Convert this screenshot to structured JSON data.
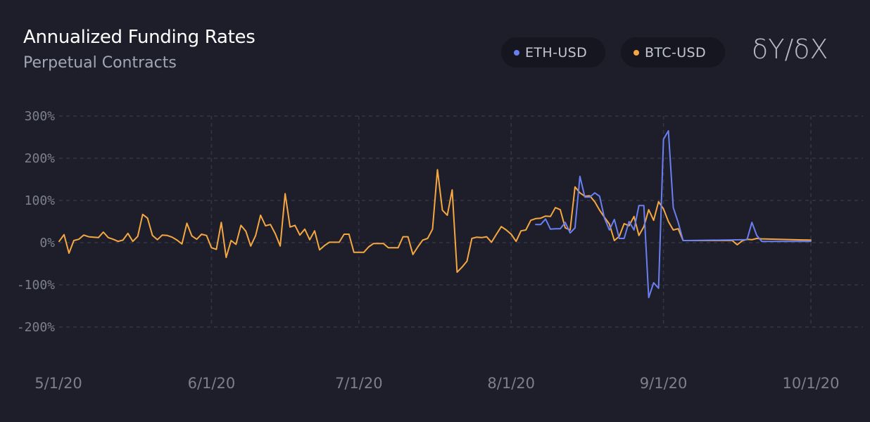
{
  "header": {
    "title": "Annualized Funding Rates",
    "subtitle": "Perpetual Contracts",
    "logo_text": "δY/δX"
  },
  "legend": [
    {
      "label": "ETH-USD",
      "color": "#6a7ff2"
    },
    {
      "label": "BTC-USD",
      "color": "#f5a742"
    }
  ],
  "chart_data": {
    "type": "line",
    "title": "Annualized Funding Rates",
    "subtitle": "Perpetual Contracts",
    "x_axis": {
      "type": "date",
      "range": [
        "2020-05-01",
        "2020-10-01"
      ],
      "ticks": [
        {
          "date": "2020-05-01",
          "label": "5/1/20"
        },
        {
          "date": "2020-06-01",
          "label": "6/1/20"
        },
        {
          "date": "2020-07-01",
          "label": "7/1/20"
        },
        {
          "date": "2020-08-01",
          "label": "8/1/20"
        },
        {
          "date": "2020-09-01",
          "label": "9/1/20"
        },
        {
          "date": "2020-10-01",
          "label": "10/1/20"
        }
      ]
    },
    "y_axis": {
      "unit": "%",
      "range": [
        -200,
        300
      ],
      "ticks": [
        {
          "value": 300,
          "label": "300%"
        },
        {
          "value": 200,
          "label": "200%"
        },
        {
          "value": 100,
          "label": "100%"
        },
        {
          "value": 0,
          "label": "0%"
        },
        {
          "value": -100,
          "label": "-100%"
        },
        {
          "value": -200,
          "label": "-200%"
        }
      ]
    },
    "grid": true,
    "legend_position": "top-right",
    "series": [
      {
        "name": "BTC-USD",
        "color": "#f5a742",
        "points": [
          [
            "2020-05-01",
            3
          ],
          [
            "2020-05-02",
            19
          ],
          [
            "2020-05-03",
            -25
          ],
          [
            "2020-05-04",
            5
          ],
          [
            "2020-05-05",
            8
          ],
          [
            "2020-05-06",
            18
          ],
          [
            "2020-05-07",
            14
          ],
          [
            "2020-05-08",
            13
          ],
          [
            "2020-05-09",
            12
          ],
          [
            "2020-05-10",
            25
          ],
          [
            "2020-05-11",
            12
          ],
          [
            "2020-05-12",
            8
          ],
          [
            "2020-05-13",
            3
          ],
          [
            "2020-05-14",
            6
          ],
          [
            "2020-05-15",
            22
          ],
          [
            "2020-05-16",
            3
          ],
          [
            "2020-05-17",
            15
          ],
          [
            "2020-05-18",
            67
          ],
          [
            "2020-05-19",
            58
          ],
          [
            "2020-05-20",
            17
          ],
          [
            "2020-05-21",
            7
          ],
          [
            "2020-05-22",
            18
          ],
          [
            "2020-05-23",
            17
          ],
          [
            "2020-05-24",
            13
          ],
          [
            "2020-05-25",
            6
          ],
          [
            "2020-05-26",
            -3
          ],
          [
            "2020-05-27",
            46
          ],
          [
            "2020-05-28",
            16
          ],
          [
            "2020-05-29",
            8
          ],
          [
            "2020-05-30",
            20
          ],
          [
            "2020-05-31",
            17
          ],
          [
            "2020-06-01",
            -12
          ],
          [
            "2020-06-02",
            -16
          ],
          [
            "2020-06-03",
            48
          ],
          [
            "2020-06-04",
            -35
          ],
          [
            "2020-06-05",
            5
          ],
          [
            "2020-06-06",
            -4
          ],
          [
            "2020-06-07",
            41
          ],
          [
            "2020-06-08",
            27
          ],
          [
            "2020-06-09",
            -8
          ],
          [
            "2020-06-10",
            17
          ],
          [
            "2020-06-11",
            65
          ],
          [
            "2020-06-12",
            40
          ],
          [
            "2020-06-13",
            43
          ],
          [
            "2020-06-14",
            21
          ],
          [
            "2020-06-15",
            -8
          ],
          [
            "2020-06-16",
            116
          ],
          [
            "2020-06-17",
            37
          ],
          [
            "2020-06-18",
            41
          ],
          [
            "2020-06-19",
            18
          ],
          [
            "2020-06-20",
            32
          ],
          [
            "2020-06-21",
            7
          ],
          [
            "2020-06-22",
            28
          ],
          [
            "2020-06-23",
            -17
          ],
          [
            "2020-06-24",
            -7
          ],
          [
            "2020-06-25",
            1
          ],
          [
            "2020-06-26",
            1
          ],
          [
            "2020-06-27",
            1
          ],
          [
            "2020-06-28",
            20
          ],
          [
            "2020-06-29",
            20
          ],
          [
            "2020-06-30",
            -23
          ],
          [
            "2020-07-01",
            -23
          ],
          [
            "2020-07-02",
            -23
          ],
          [
            "2020-07-03",
            -10
          ],
          [
            "2020-07-04",
            -2
          ],
          [
            "2020-07-05",
            -2
          ],
          [
            "2020-07-06",
            -2
          ],
          [
            "2020-07-07",
            -12
          ],
          [
            "2020-07-08",
            -12
          ],
          [
            "2020-07-09",
            -12
          ],
          [
            "2020-07-10",
            14
          ],
          [
            "2020-07-11",
            14
          ],
          [
            "2020-07-12",
            -28
          ],
          [
            "2020-07-13",
            -10
          ],
          [
            "2020-07-14",
            6
          ],
          [
            "2020-07-15",
            10
          ],
          [
            "2020-07-16",
            32
          ],
          [
            "2020-07-17",
            173
          ],
          [
            "2020-07-18",
            77
          ],
          [
            "2020-07-19",
            65
          ],
          [
            "2020-07-20",
            125
          ],
          [
            "2020-07-21",
            -70
          ],
          [
            "2020-07-22",
            -58
          ],
          [
            "2020-07-23",
            -44
          ],
          [
            "2020-07-24",
            10
          ],
          [
            "2020-07-25",
            13
          ],
          [
            "2020-07-26",
            12
          ],
          [
            "2020-07-27",
            14
          ],
          [
            "2020-07-28",
            1
          ],
          [
            "2020-07-29",
            20
          ],
          [
            "2020-07-30",
            38
          ],
          [
            "2020-07-31",
            30
          ],
          [
            "2020-08-01",
            20
          ],
          [
            "2020-08-02",
            3
          ],
          [
            "2020-08-03",
            28
          ],
          [
            "2020-08-04",
            30
          ],
          [
            "2020-08-05",
            53
          ],
          [
            "2020-08-06",
            57
          ],
          [
            "2020-08-07",
            58
          ],
          [
            "2020-08-08",
            63
          ],
          [
            "2020-08-09",
            62
          ],
          [
            "2020-08-10",
            83
          ],
          [
            "2020-08-11",
            78
          ],
          [
            "2020-08-12",
            35
          ],
          [
            "2020-08-13",
            30
          ],
          [
            "2020-08-14",
            132
          ],
          [
            "2020-08-15",
            118
          ],
          [
            "2020-08-16",
            110
          ],
          [
            "2020-08-17",
            111
          ],
          [
            "2020-08-18",
            97
          ],
          [
            "2020-08-19",
            77
          ],
          [
            "2020-08-20",
            60
          ],
          [
            "2020-08-21",
            44
          ],
          [
            "2020-08-22",
            5
          ],
          [
            "2020-08-23",
            15
          ],
          [
            "2020-08-24",
            45
          ],
          [
            "2020-08-25",
            40
          ],
          [
            "2020-08-26",
            62
          ],
          [
            "2020-08-27",
            17
          ],
          [
            "2020-08-28",
            38
          ],
          [
            "2020-08-29",
            78
          ],
          [
            "2020-08-30",
            53
          ],
          [
            "2020-08-31",
            97
          ],
          [
            "2020-09-01",
            80
          ],
          [
            "2020-09-02",
            50
          ],
          [
            "2020-09-03",
            30
          ],
          [
            "2020-09-04",
            33
          ],
          [
            "2020-09-05",
            5
          ],
          [
            "2020-09-06",
            5
          ],
          [
            "2020-09-15",
            5
          ],
          [
            "2020-09-16",
            -5
          ],
          [
            "2020-09-17",
            4
          ],
          [
            "2020-09-18",
            8
          ],
          [
            "2020-09-19",
            7
          ],
          [
            "2020-09-20",
            10
          ],
          [
            "2020-09-21",
            9
          ],
          [
            "2020-10-01",
            6
          ]
        ]
      },
      {
        "name": "ETH-USD",
        "color": "#6a7ff2",
        "points": [
          [
            "2020-08-06",
            43
          ],
          [
            "2020-08-07",
            43
          ],
          [
            "2020-08-08",
            56
          ],
          [
            "2020-08-09",
            32
          ],
          [
            "2020-08-10",
            33
          ],
          [
            "2020-08-11",
            33
          ],
          [
            "2020-08-12",
            48
          ],
          [
            "2020-08-13",
            23
          ],
          [
            "2020-08-14",
            35
          ],
          [
            "2020-08-15",
            157
          ],
          [
            "2020-08-16",
            108
          ],
          [
            "2020-08-17",
            108
          ],
          [
            "2020-08-18",
            118
          ],
          [
            "2020-08-19",
            110
          ],
          [
            "2020-08-20",
            58
          ],
          [
            "2020-08-21",
            30
          ],
          [
            "2020-08-22",
            55
          ],
          [
            "2020-08-23",
            10
          ],
          [
            "2020-08-24",
            10
          ],
          [
            "2020-08-25",
            50
          ],
          [
            "2020-08-26",
            30
          ],
          [
            "2020-08-27",
            88
          ],
          [
            "2020-08-28",
            88
          ],
          [
            "2020-08-29",
            -130
          ],
          [
            "2020-08-30",
            -95
          ],
          [
            "2020-08-31",
            -108
          ],
          [
            "2020-09-01",
            245
          ],
          [
            "2020-09-02",
            265
          ],
          [
            "2020-09-03",
            83
          ],
          [
            "2020-09-04",
            48
          ],
          [
            "2020-09-05",
            5
          ],
          [
            "2020-09-06",
            5
          ],
          [
            "2020-09-18",
            7
          ],
          [
            "2020-09-19",
            48
          ],
          [
            "2020-09-20",
            17
          ],
          [
            "2020-09-21",
            3
          ],
          [
            "2020-10-01",
            3
          ]
        ]
      }
    ]
  }
}
